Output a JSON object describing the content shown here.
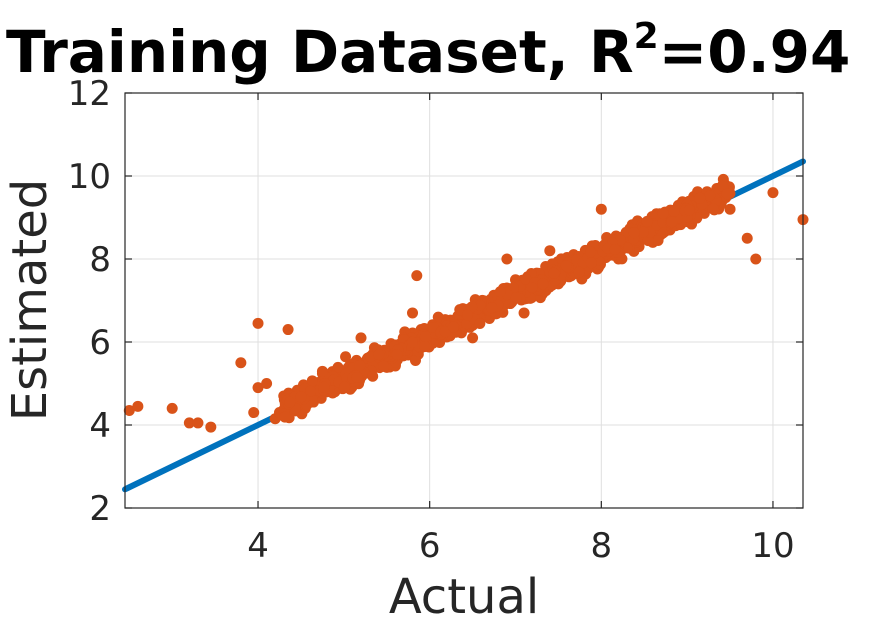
{
  "chart_data": {
    "type": "scatter",
    "title": "Training Dataset, R",
    "title_superscript": "2",
    "title_suffix": "=0.94",
    "xlabel": "Actual",
    "ylabel": "Estimated",
    "xlim": [
      2.45,
      10.35
    ],
    "ylim": [
      2,
      12
    ],
    "xticks": [
      4,
      6,
      8,
      10
    ],
    "yticks": [
      2,
      4,
      6,
      8,
      10,
      12
    ],
    "grid": true,
    "colors": {
      "scatter": "#d95319",
      "line": "#0072bd"
    },
    "series": [
      {
        "role": "fit-line",
        "x": [
          2.45,
          10.35
        ],
        "y": [
          2.45,
          10.35
        ]
      },
      {
        "role": "points",
        "x": [
          2.5,
          2.6,
          3.0,
          3.2,
          3.3,
          3.45,
          3.8,
          4.0,
          3.95,
          4.35,
          4.0,
          4.1,
          4.2,
          4.25,
          4.3,
          4.55,
          4.6,
          4.8,
          5.0,
          5.1,
          5.3,
          5.2,
          5.6,
          5.8,
          5.9,
          6.0,
          6.1,
          6.3,
          6.4,
          6.6,
          6.8,
          6.9,
          7.0,
          7.1,
          7.2,
          7.35,
          7.5,
          7.6,
          7.8,
          8.0,
          8.2,
          8.5,
          8.6,
          8.8,
          9.0,
          9.2,
          9.5,
          9.7,
          9.8,
          10.0,
          10.35,
          6.9,
          7.4,
          8.9,
          5.85,
          6.5,
          8.0
        ],
        "y": [
          4.35,
          4.45,
          4.4,
          4.05,
          4.05,
          3.95,
          5.5,
          6.45,
          4.3,
          6.3,
          4.9,
          5.0,
          4.15,
          4.3,
          4.7,
          4.4,
          4.55,
          4.8,
          5.0,
          5.3,
          5.4,
          6.1,
          5.7,
          6.7,
          6.3,
          6.1,
          6.6,
          6.3,
          6.5,
          6.9,
          7.1,
          7.3,
          7.5,
          6.7,
          7.4,
          7.7,
          7.4,
          7.6,
          7.9,
          8.2,
          8.0,
          8.6,
          8.4,
          8.7,
          8.9,
          9.1,
          9.2,
          8.5,
          8.0,
          9.6,
          8.95,
          8.0,
          8.2,
          9.1,
          7.6,
          6.1,
          9.2
        ]
      }
    ]
  }
}
